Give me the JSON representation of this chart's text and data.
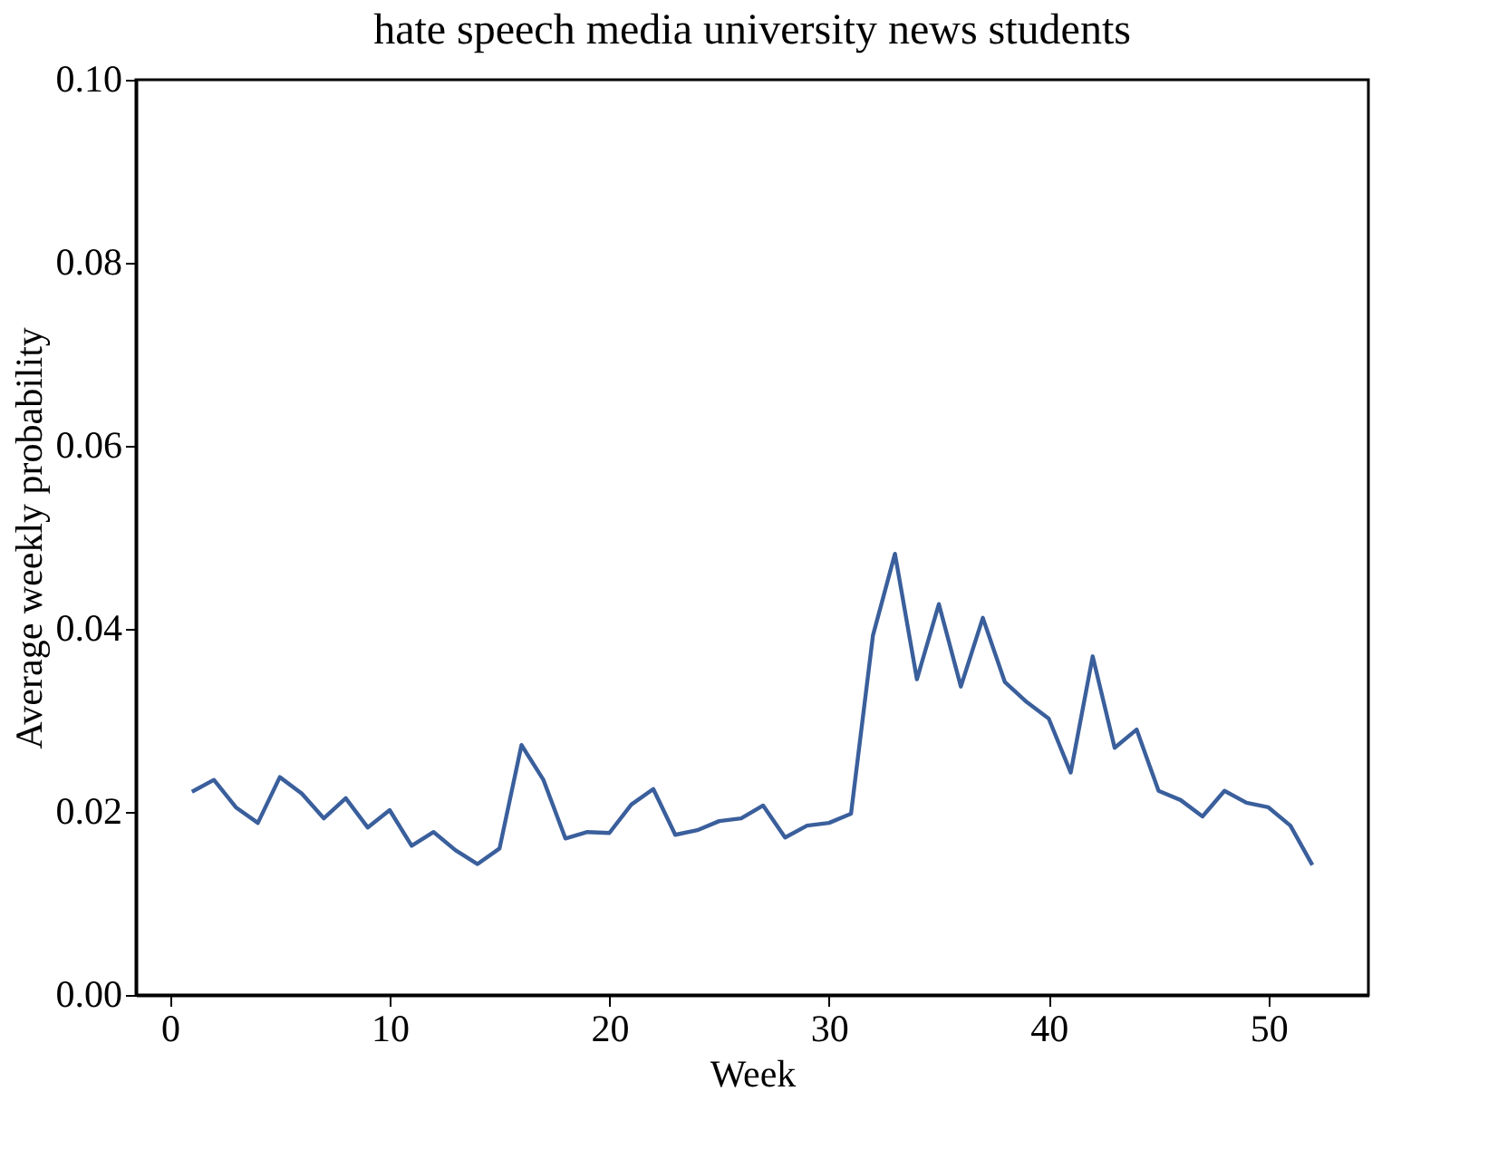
{
  "chart_data": {
    "type": "line",
    "title": "hate speech media university news students",
    "xlabel": "Week",
    "ylabel": "Average weekly probability",
    "x": [
      1,
      2,
      3,
      4,
      5,
      6,
      7,
      8,
      9,
      10,
      11,
      12,
      13,
      14,
      15,
      16,
      17,
      18,
      19,
      20,
      21,
      22,
      23,
      24,
      25,
      26,
      27,
      28,
      29,
      30,
      31,
      32,
      33,
      34,
      35,
      36,
      37,
      38,
      39,
      40,
      41,
      42,
      43,
      44,
      45,
      46,
      47,
      48,
      49,
      50,
      51,
      52
    ],
    "series": [
      {
        "color": "#3a5f9c",
        "values": [
          0.0222,
          0.0235,
          0.0205,
          0.0188,
          0.0238,
          0.022,
          0.0193,
          0.0215,
          0.0183,
          0.0202,
          0.0163,
          0.0178,
          0.0158,
          0.0143,
          0.016,
          0.0273,
          0.0235,
          0.0171,
          0.0178,
          0.0177,
          0.0208,
          0.0225,
          0.0175,
          0.018,
          0.019,
          0.0193,
          0.0207,
          0.0172,
          0.0185,
          0.0188,
          0.0198,
          0.0393,
          0.0482,
          0.0345,
          0.0427,
          0.0337,
          0.0412,
          0.0342,
          0.032,
          0.0302,
          0.0243,
          0.037,
          0.027,
          0.029,
          0.0223,
          0.0213,
          0.0195,
          0.0223,
          0.021,
          0.0205,
          0.0185,
          0.0142
        ]
      }
    ],
    "xlim": [
      -1.55,
      54.55
    ],
    "xticks": [
      0,
      10,
      20,
      30,
      40,
      50
    ],
    "ylim": [
      0,
      0.1
    ],
    "yticks": [
      {
        "value": 0,
        "label": "0.00"
      },
      {
        "value": 0.02,
        "label": "0.02"
      },
      {
        "value": 0.04,
        "label": "0.04"
      },
      {
        "value": 0.06,
        "label": "0.06"
      },
      {
        "value": 0.08,
        "label": "0.08"
      },
      {
        "value": 0.1,
        "label": "0.10"
      }
    ],
    "grid": false,
    "marker": "none",
    "line_style": "solid"
  }
}
